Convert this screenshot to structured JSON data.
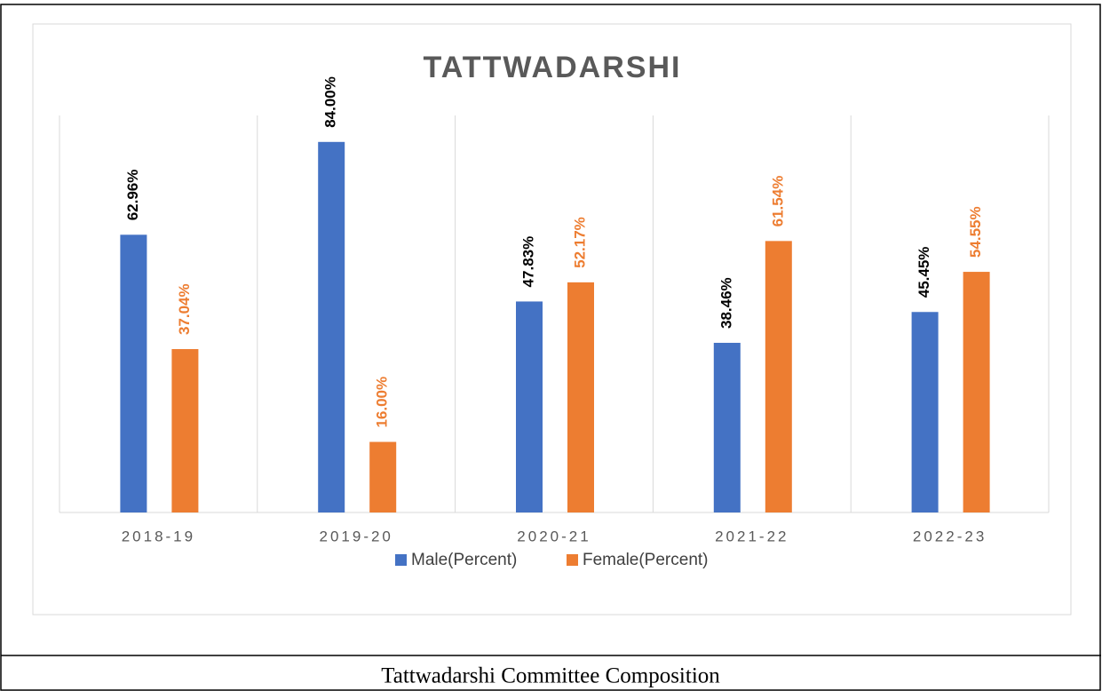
{
  "chart_data": {
    "type": "bar",
    "title": "TATTWADARSHI",
    "categories": [
      "2018-19",
      "2019-20",
      "2020-21",
      "2021-22",
      "2022-23"
    ],
    "series": [
      {
        "name": "Male(Percent)",
        "color": "#4472c4",
        "label_color": "#000000",
        "values": [
          62.96,
          84.0,
          47.83,
          38.46,
          45.45
        ],
        "value_labels": [
          "62.96%",
          "84.00%",
          "47.83%",
          "38.46%",
          "45.45%"
        ]
      },
      {
        "name": "Female(Percent)",
        "color": "#ed7d31",
        "label_color": "#ed7d31",
        "values": [
          37.04,
          16.0,
          52.17,
          61.54,
          54.55
        ],
        "value_labels": [
          "37.04%",
          "16.00%",
          "52.17%",
          "61.54%",
          "54.55%"
        ]
      }
    ],
    "ylim": [
      0,
      90
    ],
    "legend": "bottom",
    "grid": "vertical"
  },
  "caption": "Tattwadarshi Committee Composition"
}
